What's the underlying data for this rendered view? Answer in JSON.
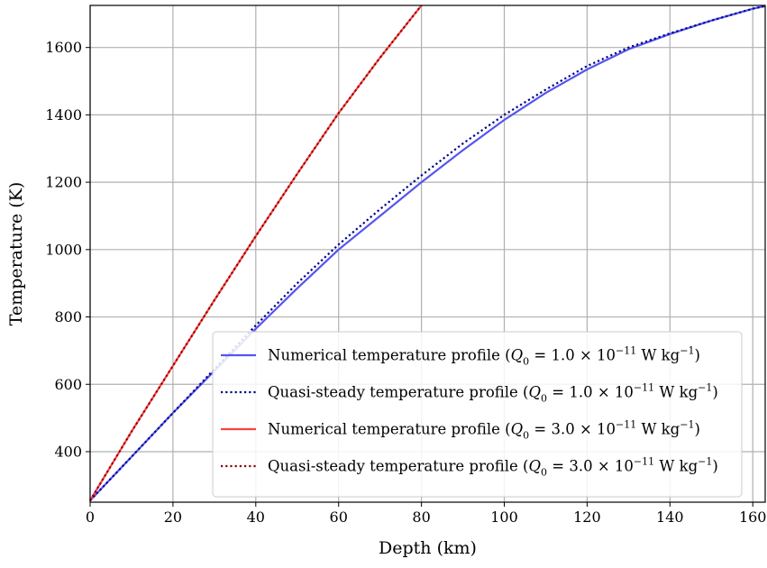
{
  "chart_data": {
    "type": "line",
    "xlabel": "Depth (km)",
    "ylabel": "Temperature (K)",
    "xlim": [
      0,
      163
    ],
    "ylim": [
      250,
      1725
    ],
    "xticks": [
      0,
      20,
      40,
      60,
      80,
      100,
      120,
      140,
      160
    ],
    "yticks": [
      400,
      600,
      800,
      1000,
      1200,
      1400,
      1600
    ],
    "grid": true,
    "legend_position": "lower-right",
    "series": [
      {
        "name": "Numerical temperature profile (Q0 = 1.0 × 10−11 W kg−1)",
        "label_parts": [
          "Numerical temperature profile (",
          "Q",
          "0",
          " = 1.0 × 10",
          "−11",
          " W kg",
          "−1",
          ")"
        ],
        "color": "#5555ee",
        "style": "solid",
        "x": [
          0,
          10,
          20,
          30,
          40,
          50,
          60,
          70,
          80,
          90,
          100,
          110,
          120,
          130,
          140,
          150,
          160,
          163
        ],
        "y": [
          255,
          385,
          515,
          640,
          765,
          885,
          1000,
          1100,
          1200,
          1295,
          1385,
          1465,
          1535,
          1595,
          1640,
          1680,
          1715,
          1723
        ]
      },
      {
        "name": "Quasi-steady temperature profile (Q0 = 1.0 × 10−11 W kg−1)",
        "label_parts": [
          "Quasi-steady temperature profile (",
          "Q",
          "0",
          " = 1.0 × 10",
          "−11",
          " W kg",
          "−1",
          ")"
        ],
        "color": "#00008b",
        "style": "dotted",
        "x": [
          0,
          10,
          20,
          30,
          40,
          50,
          60,
          70,
          80,
          90,
          100,
          110,
          120,
          130,
          140,
          150,
          160,
          163
        ],
        "y": [
          255,
          385,
          515,
          645,
          775,
          900,
          1015,
          1120,
          1220,
          1315,
          1400,
          1475,
          1545,
          1600,
          1642,
          1680,
          1715,
          1723
        ]
      },
      {
        "name": "Numerical temperature profile (Q0 = 3.0 × 10−11 W kg−1)",
        "label_parts": [
          "Numerical temperature profile (",
          "Q",
          "0",
          " = 3.0 × 10",
          "−11",
          " W kg",
          "−1",
          ")"
        ],
        "color": "#ff4040",
        "style": "solid",
        "x": [
          0,
          10,
          20,
          30,
          40,
          50,
          60,
          70,
          80
        ],
        "y": [
          255,
          460,
          655,
          850,
          1040,
          1225,
          1405,
          1570,
          1725
        ]
      },
      {
        "name": "Quasi-steady temperature profile  (Q0 = 3.0 × 10−11 W kg−1)",
        "label_parts": [
          "Quasi-steady temperature profile  (",
          "Q",
          "0",
          " = 3.0 × 10",
          "−11",
          " W kg",
          "−1",
          ")"
        ],
        "color": "#8b0000",
        "style": "dotted",
        "x": [
          0,
          10,
          20,
          30,
          40,
          50,
          60,
          70,
          80
        ],
        "y": [
          255,
          460,
          655,
          850,
          1040,
          1225,
          1405,
          1570,
          1725
        ]
      }
    ]
  }
}
